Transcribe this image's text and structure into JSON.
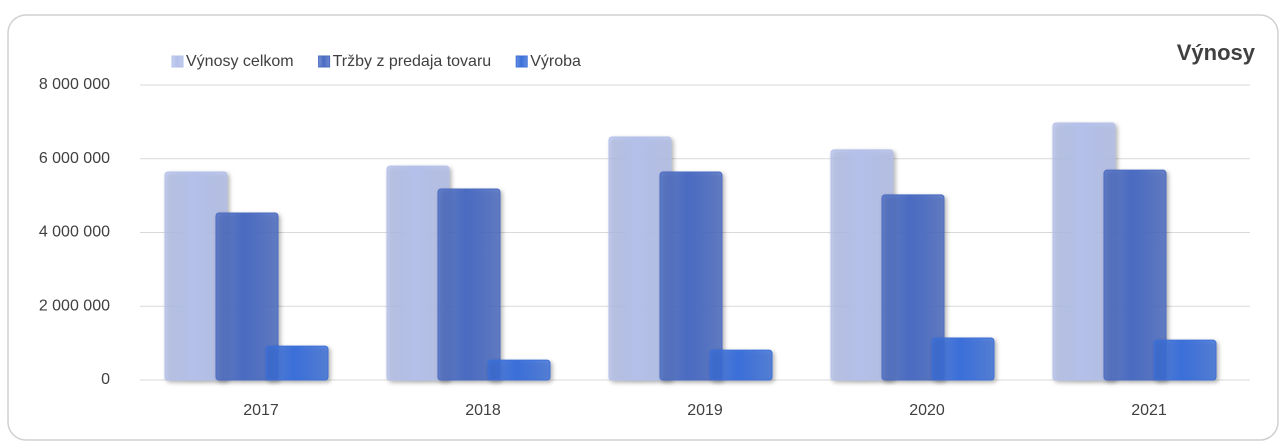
{
  "chart_data": {
    "type": "bar",
    "title": "Výnosy",
    "categories": [
      "2017",
      "2018",
      "2019",
      "2020",
      "2021"
    ],
    "series": [
      {
        "name": "Výnosy celkom",
        "color": "#b4c0ea",
        "values": [
          5640000,
          5800000,
          6590000,
          6240000,
          6970000
        ]
      },
      {
        "name": "Tržby z predaja tovaru",
        "color": "#4a6bc2",
        "values": [
          4530000,
          5180000,
          5640000,
          5020000,
          5690000
        ]
      },
      {
        "name": "Výroba",
        "color": "#3b6fd9",
        "values": [
          920000,
          540000,
          810000,
          1140000,
          1080000
        ]
      }
    ],
    "ylim": [
      0,
      8000000
    ],
    "yticks": [
      0,
      {
        "value": 2000000,
        "label": "2 000 000"
      },
      {
        "value": 4000000,
        "label": "4 000 000"
      },
      {
        "value": 6000000,
        "label": "6 000 000"
      },
      {
        "value": 8000000,
        "label": "8 000 000"
      }
    ],
    "grid": true
  }
}
